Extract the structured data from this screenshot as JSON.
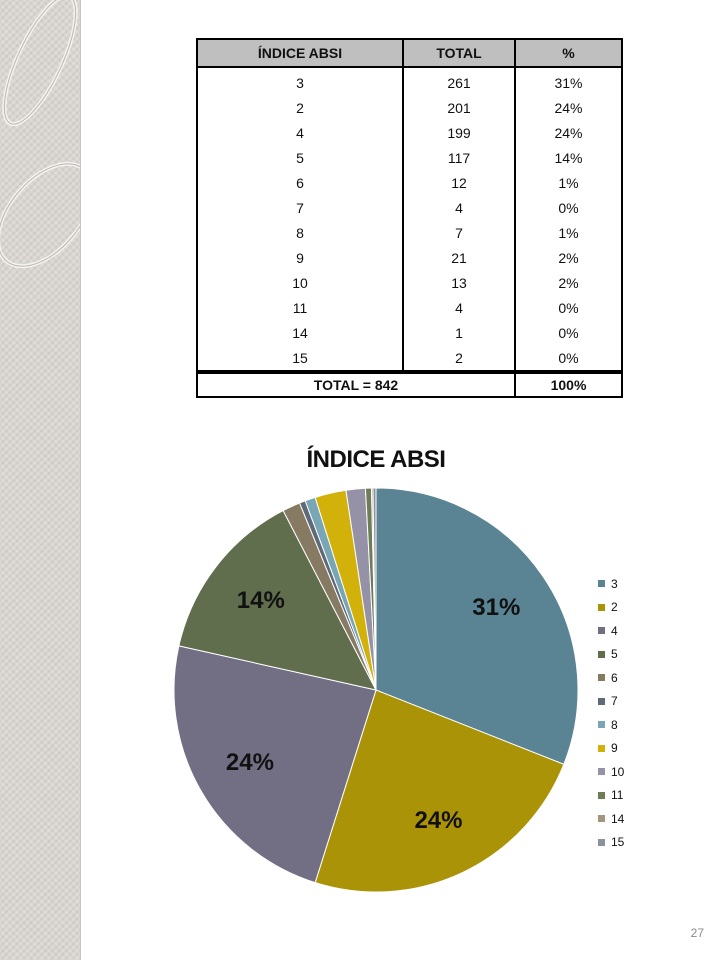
{
  "table": {
    "headers": [
      "ÍNDICE ABSI",
      "TOTAL",
      "%"
    ],
    "rows": [
      {
        "index": "3",
        "total": "261",
        "percent": "31%"
      },
      {
        "index": "2",
        "total": "201",
        "percent": "24%"
      },
      {
        "index": "4",
        "total": "199",
        "percent": "24%"
      },
      {
        "index": "5",
        "total": "117",
        "percent": "14%"
      },
      {
        "index": "6",
        "total": "12",
        "percent": "1%"
      },
      {
        "index": "7",
        "total": "4",
        "percent": "0%"
      },
      {
        "index": "8",
        "total": "7",
        "percent": "1%"
      },
      {
        "index": "9",
        "total": "21",
        "percent": "2%"
      },
      {
        "index": "10",
        "total": "13",
        "percent": "2%"
      },
      {
        "index": "11",
        "total": "4",
        "percent": "0%"
      },
      {
        "index": "14",
        "total": "1",
        "percent": "0%"
      },
      {
        "index": "15",
        "total": "2",
        "percent": "0%"
      }
    ],
    "footer": {
      "label": "TOTAL = 842",
      "percent": "100%"
    }
  },
  "chart_data": {
    "type": "pie",
    "title": "ÍNDICE ABSI",
    "categories": [
      "3",
      "2",
      "4",
      "5",
      "6",
      "7",
      "8",
      "9",
      "10",
      "11",
      "14",
      "15"
    ],
    "values": [
      261,
      201,
      199,
      117,
      12,
      4,
      7,
      21,
      13,
      4,
      1,
      2
    ],
    "colors": [
      "#5a8494",
      "#ab9308",
      "#726f84",
      "#606e4d",
      "#877a63",
      "#5f6a78",
      "#78a6b4",
      "#d2b10b",
      "#9592a8",
      "#6e7c58",
      "#a4967c",
      "#8a929e"
    ],
    "data_labels": [
      {
        "category": "3",
        "text": "31%"
      },
      {
        "category": "2",
        "text": "24%"
      },
      {
        "category": "4",
        "text": "24%"
      },
      {
        "category": "5",
        "text": "14%"
      }
    ],
    "legend_position": "right",
    "start_angle": "12 o'clock",
    "direction": "clockwise"
  },
  "page_number": "27"
}
